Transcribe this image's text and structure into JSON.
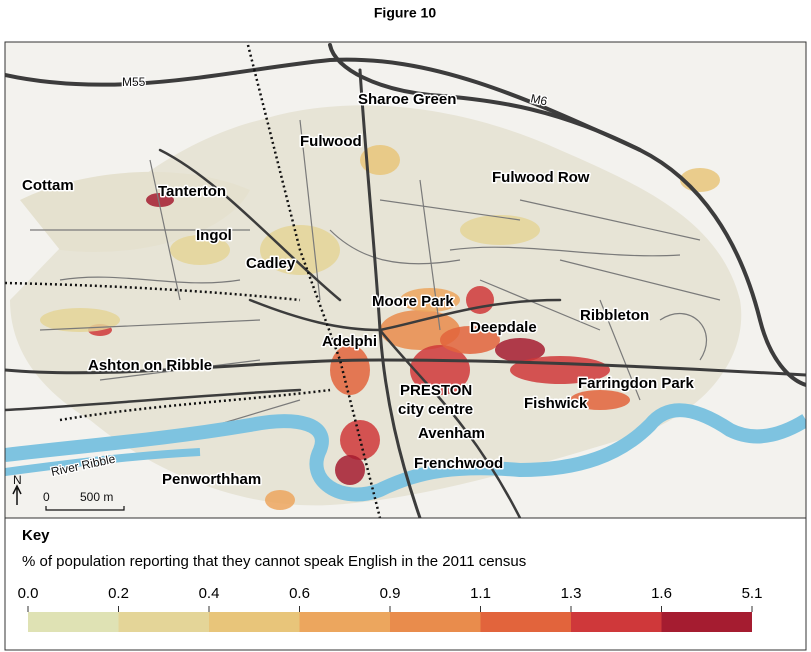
{
  "title": "Figure 10",
  "map": {
    "roads": [
      "M55",
      "M6"
    ],
    "places": [
      "Sharoe Green",
      "Fulwood",
      "Fulwood Row",
      "Cottam",
      "Tanterton",
      "Ingol",
      "Cadley",
      "Moore Park",
      "Deepdale",
      "Ribbleton",
      "Adelphi",
      "Ashton on Ribble",
      "PRESTON",
      "city centre",
      "Farringdon Park",
      "Fishwick",
      "Avenham",
      "Frenchwood",
      "Penworthham"
    ],
    "river": "River Ribble",
    "scale": {
      "north": "N",
      "start": "0",
      "length": "500 m"
    }
  },
  "key": {
    "title": "Key",
    "description": "% of population reporting that they cannot speak English in the 2011 census",
    "breaks": [
      "0.0",
      "0.2",
      "0.4",
      "0.6",
      "0.9",
      "1.1",
      "1.3",
      "1.6",
      "5.1"
    ],
    "colors": [
      "#dfe2b4",
      "#e4d598",
      "#e8c57a",
      "#eca65e",
      "#e98c4c",
      "#e2643c",
      "#cf383a",
      "#a51c30"
    ]
  }
}
